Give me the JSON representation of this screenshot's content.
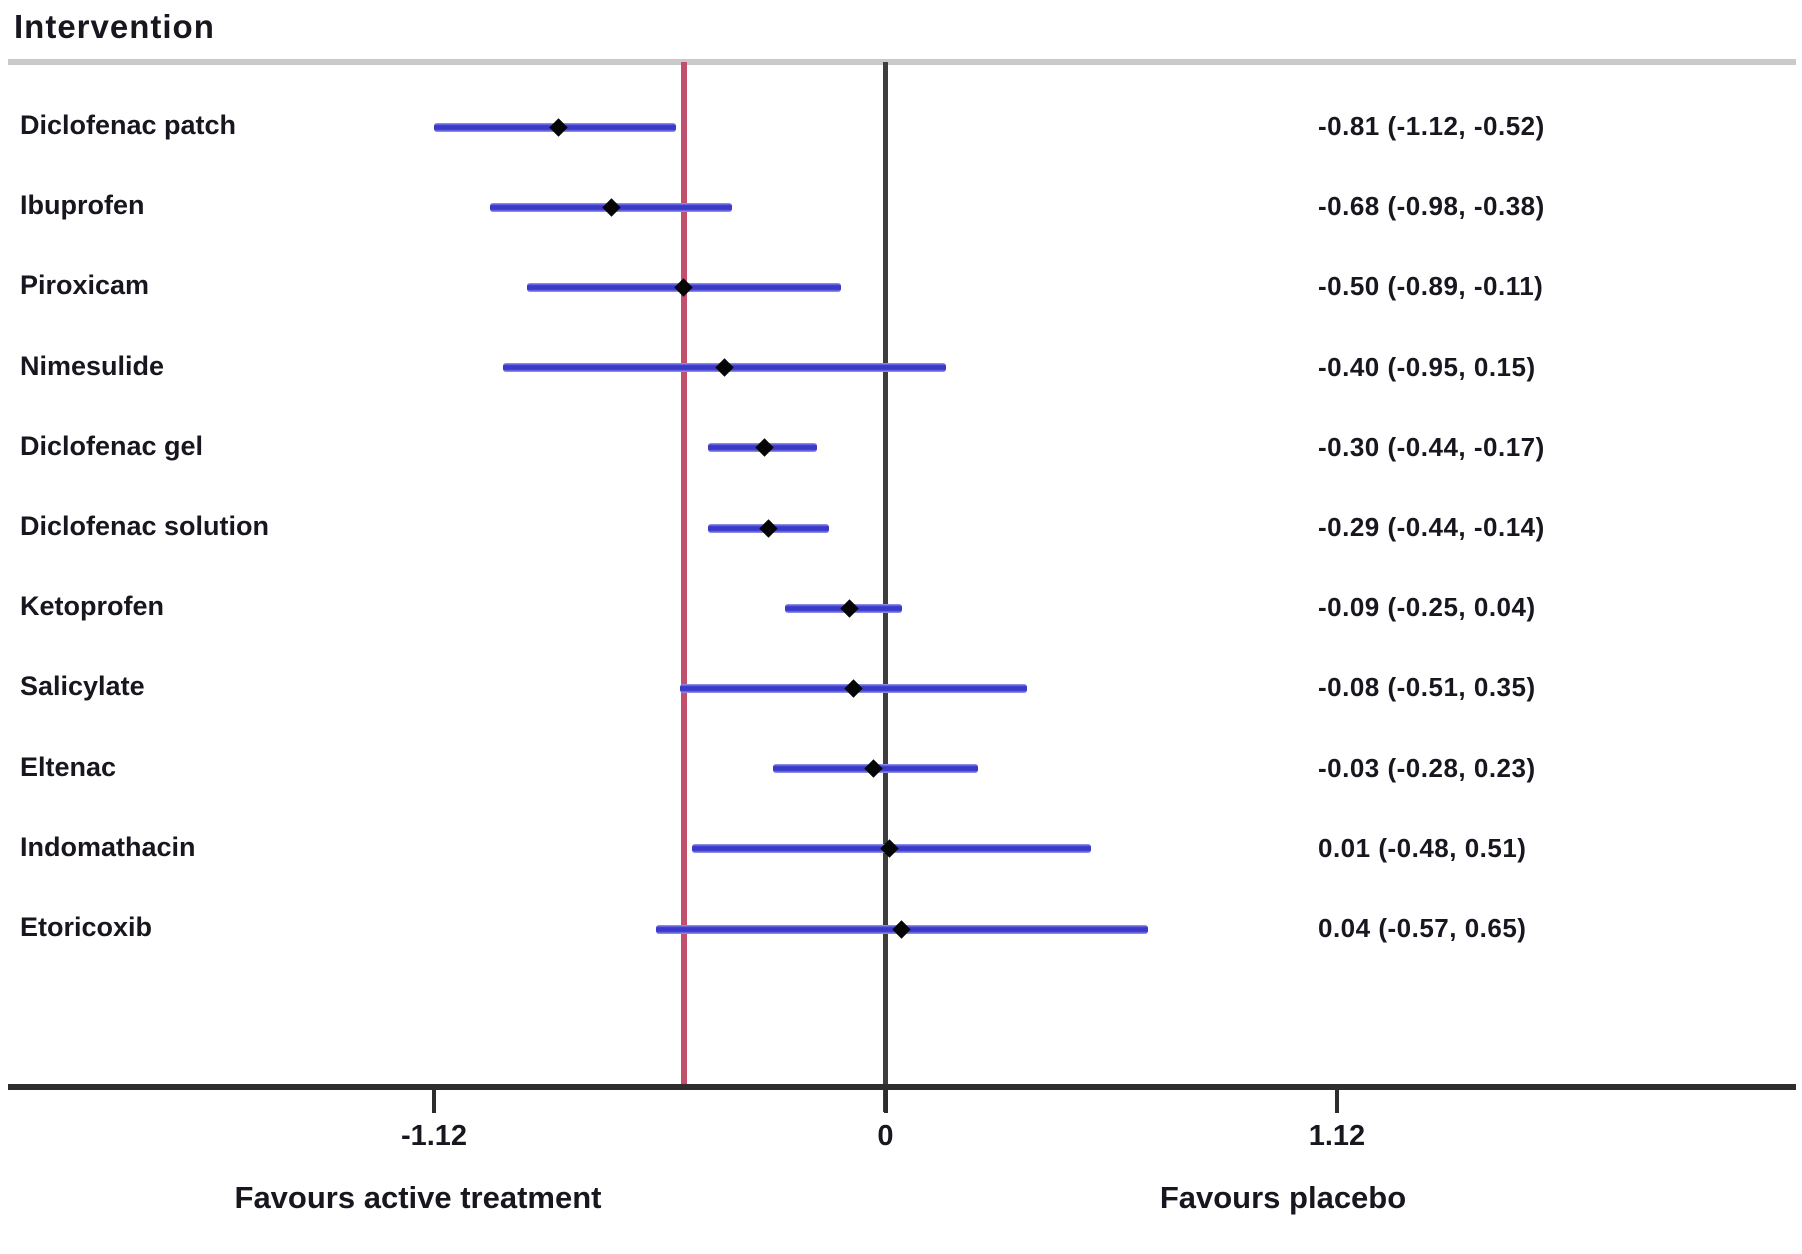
{
  "header": {
    "title": "Intervention"
  },
  "footer": {
    "left_caption": "Favours active treatment",
    "right_caption": "Favours placebo"
  },
  "chart_data": {
    "type": "forest",
    "title": "Intervention",
    "rows": [
      {
        "label": "Diclofenac patch",
        "est": -0.81,
        "lo": -1.12,
        "hi": -0.52,
        "text": "-0.81 (-1.12, -0.52)"
      },
      {
        "label": "Ibuprofen",
        "est": -0.68,
        "lo": -0.98,
        "hi": -0.38,
        "text": "-0.68 (-0.98, -0.38)"
      },
      {
        "label": "Piroxicam",
        "est": -0.5,
        "lo": -0.89,
        "hi": -0.11,
        "text": "-0.50 (-0.89, -0.11)"
      },
      {
        "label": "Nimesulide",
        "est": -0.4,
        "lo": -0.95,
        "hi": 0.15,
        "text": "-0.40 (-0.95, 0.15)"
      },
      {
        "label": "Diclofenac gel",
        "est": -0.3,
        "lo": -0.44,
        "hi": -0.17,
        "text": "-0.30 (-0.44, -0.17)"
      },
      {
        "label": "Diclofenac solution",
        "est": -0.29,
        "lo": -0.44,
        "hi": -0.14,
        "text": "-0.29 (-0.44, -0.14)"
      },
      {
        "label": "Ketoprofen",
        "est": -0.09,
        "lo": -0.25,
        "hi": 0.04,
        "text": "-0.09 (-0.25, 0.04)"
      },
      {
        "label": "Salicylate",
        "est": -0.08,
        "lo": -0.51,
        "hi": 0.35,
        "text": "-0.08 (-0.51, 0.35)"
      },
      {
        "label": "Eltenac",
        "est": -0.03,
        "lo": -0.28,
        "hi": 0.23,
        "text": "-0.03 (-0.28, 0.23)"
      },
      {
        "label": "Indomathacin",
        "est": 0.01,
        "lo": -0.48,
        "hi": 0.51,
        "text": "0.01 (-0.48, 0.51)"
      },
      {
        "label": "Etoricoxib",
        "est": 0.04,
        "lo": -0.57,
        "hi": 0.65,
        "text": "0.04 (-0.57, 0.65)"
      }
    ],
    "x_ticks": [
      -1.12,
      0,
      1.12
    ],
    "x_tick_labels": [
      "-1.12",
      "0",
      "1.12"
    ],
    "zero_line": 0,
    "reference_line": -0.5,
    "xlabel_left": "Favours active treatment",
    "xlabel_right": "Favours placebo",
    "legend_position": "none",
    "grid": false,
    "colors": {
      "ci_line": "#3a39cc",
      "ci_halo": "#9b9ae7",
      "marker": "#050505",
      "zero_line": "#3d3d3d",
      "reference_line": "#c0506c",
      "axis": "#2d2d2d",
      "separator": "#c9c9c9",
      "text": "#17171f"
    }
  }
}
